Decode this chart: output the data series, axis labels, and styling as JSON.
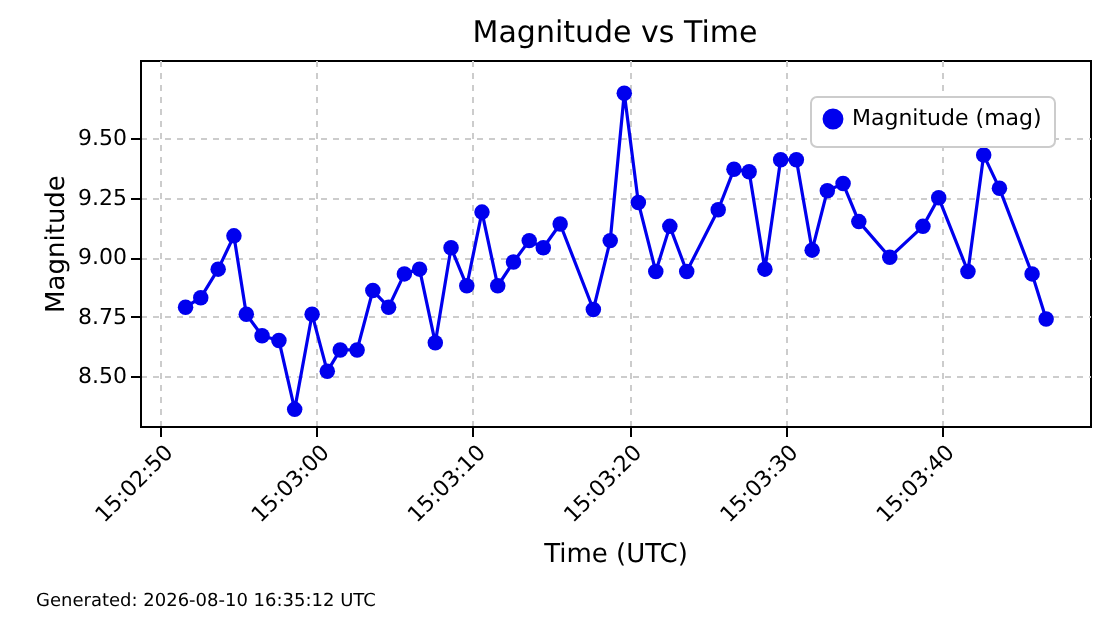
{
  "chart_data": {
    "type": "line",
    "title": "Magnitude vs Time",
    "xlabel": "Time (UTC)",
    "ylabel": "Magnitude",
    "x": [
      15.04767,
      15.04794,
      15.04825,
      15.04853,
      15.04875,
      15.04903,
      15.04933,
      15.04961,
      15.04992,
      15.05019,
      15.05042,
      15.05072,
      15.051,
      15.05128,
      15.05156,
      15.05183,
      15.05211,
      15.05239,
      15.05267,
      15.05294,
      15.05322,
      15.0535,
      15.05378,
      15.05403,
      15.05433,
      15.05492,
      15.05522,
      15.05547,
      15.05572,
      15.05603,
      15.05628,
      15.05658,
      15.05714,
      15.05742,
      15.05769,
      15.05797,
      15.05825,
      15.05853,
      15.05881,
      15.05908,
      15.05936,
      15.05964,
      15.06019,
      15.06078,
      15.06106,
      15.06158,
      15.06186,
      15.06214,
      15.06272,
      15.06297
    ],
    "series": [
      {
        "name": "Magnitude (mag)",
        "color": "#0000ee",
        "values": [
          8.79,
          8.83,
          8.95,
          9.09,
          8.76,
          8.67,
          8.65,
          8.36,
          8.76,
          8.52,
          8.61,
          8.61,
          8.86,
          8.79,
          8.93,
          8.95,
          8.64,
          9.04,
          8.88,
          9.19,
          8.88,
          8.98,
          9.07,
          9.04,
          9.14,
          8.78,
          9.07,
          9.69,
          9.23,
          8.94,
          9.13,
          8.94,
          9.2,
          9.37,
          9.36,
          8.95,
          9.41,
          9.41,
          9.03,
          9.28,
          9.31,
          9.15,
          9.0,
          9.13,
          9.25,
          8.94,
          9.43,
          9.29,
          8.93,
          8.74
        ]
      }
    ],
    "xlim": [
      15.04686,
      15.06375
    ],
    "xticks": [
      {
        "value": 15.047222,
        "label": "15:02:50"
      },
      {
        "value": 15.05,
        "label": "15:03:00"
      },
      {
        "value": 15.052778,
        "label": "15:03:10"
      },
      {
        "value": 15.055556,
        "label": "15:03:20"
      },
      {
        "value": 15.058333,
        "label": "15:03:30"
      },
      {
        "value": 15.061111,
        "label": "15:03:40"
      }
    ],
    "ylim": [
      8.29,
      9.83
    ],
    "yticks": [
      {
        "value": 8.5,
        "label": "8.50"
      },
      {
        "value": 8.75,
        "label": "8.75"
      },
      {
        "value": 9.0,
        "label": "9.00"
      },
      {
        "value": 9.25,
        "label": "9.25"
      },
      {
        "value": 9.5,
        "label": "9.50"
      }
    ],
    "grid": true,
    "legend": "top right",
    "marker": "circle",
    "line_style": "solid",
    "annotations": [
      "Generated: 2026-08-10 16:35:12 UTC"
    ]
  }
}
